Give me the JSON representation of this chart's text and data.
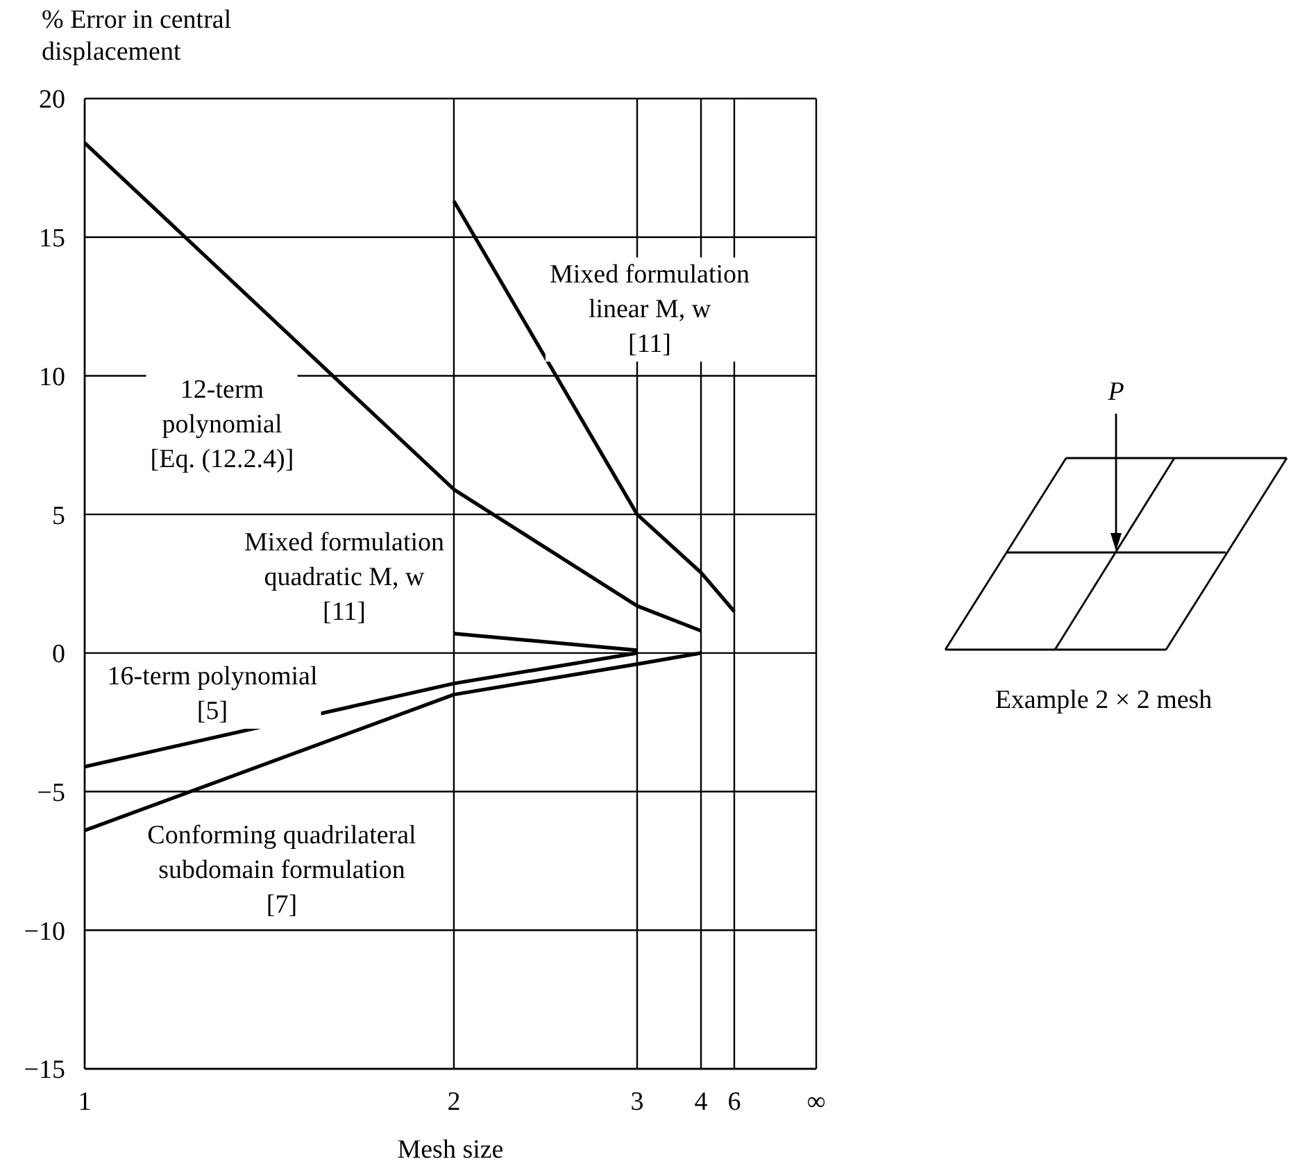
{
  "chart_data": {
    "type": "line",
    "xlabel": "Mesh size",
    "ylabel": "% Error in central displacement",
    "categories": [
      "1",
      "2",
      "3",
      "4",
      "6",
      "∞"
    ],
    "ylim": [
      -15,
      20
    ],
    "yticks": [
      -15,
      -10,
      -5,
      0,
      5,
      10,
      15,
      20
    ],
    "grid": true,
    "marker": "none",
    "line_style": "solid",
    "series": [
      {
        "name": "12-term\npolynomial\n[Eq. (12.2.4)]",
        "color": "#000000",
        "values": [
          18.4,
          5.9,
          1.7,
          0.8,
          null,
          null
        ]
      },
      {
        "name": "Mixed formulation\nlinear M, w\n[11]",
        "color": "#000000",
        "values": [
          null,
          16.3,
          5.0,
          2.9,
          1.5,
          null
        ]
      },
      {
        "name": "Mixed formulation\nquadratic M, w\n[11]",
        "color": "#000000",
        "values": [
          null,
          0.7,
          0.1,
          null,
          null,
          null
        ]
      },
      {
        "name": "16-term polynomial\n[5]",
        "color": "#000000",
        "values": [
          -4.1,
          -1.1,
          0,
          null,
          null,
          null
        ]
      },
      {
        "name": "Conforming quadrilateral\nsubdomain formulation\n[7]",
        "color": "#000000",
        "values": [
          -6.4,
          -1.5,
          -0.4,
          0,
          null,
          null
        ]
      }
    ],
    "annotations": [
      "P",
      "Example 2 × 2 mesh"
    ]
  }
}
